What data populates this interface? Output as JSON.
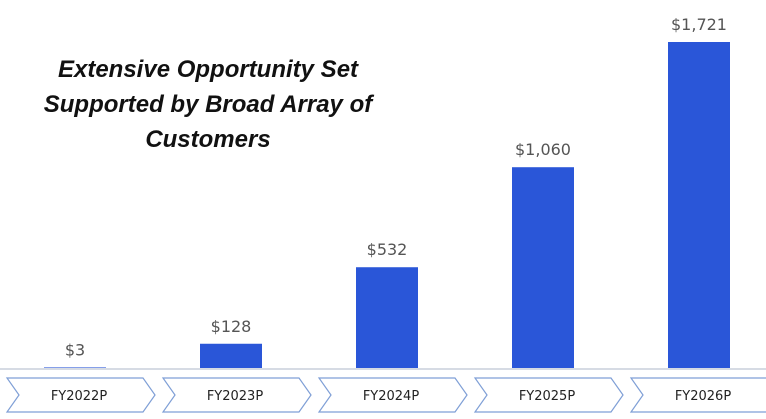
{
  "chart_data": {
    "type": "bar",
    "title": "Extensive Opportunity Set Supported by Broad Array of Customers",
    "categories": [
      "FY2022P",
      "FY2023P",
      "FY2024P",
      "FY2025P",
      "FY2026P"
    ],
    "values": [
      3,
      128,
      532,
      1060,
      1721
    ],
    "value_labels": [
      "$3",
      "$128",
      "$532",
      "$1,060",
      "$1,721"
    ],
    "color": "#2a56d8"
  }
}
